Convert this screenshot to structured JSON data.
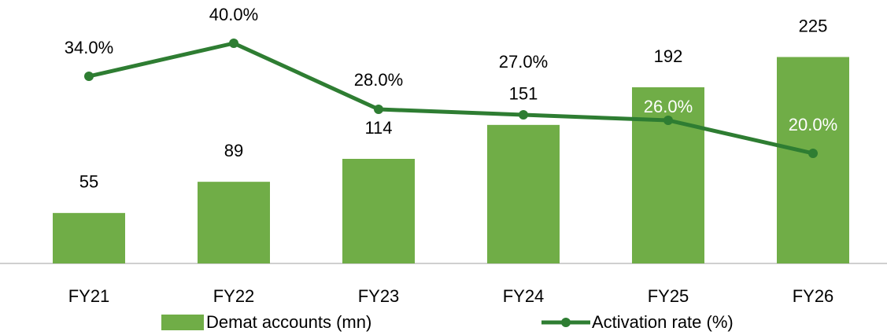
{
  "chart_data": {
    "type": "combo",
    "categories": [
      "FY21",
      "FY22",
      "FY23",
      "FY24",
      "FY25",
      "FY26"
    ],
    "series": [
      {
        "name": "Demat accounts (mn)",
        "type": "bar",
        "color": "#70ad47",
        "values": [
          55,
          89,
          114,
          151,
          192,
          225
        ]
      },
      {
        "name": "Activation rate (%)",
        "type": "line",
        "axis": "y2",
        "color": "#2e7d32",
        "values": [
          34,
          40,
          28,
          27,
          26,
          20
        ],
        "value_labels": [
          "34.0%",
          "40.0%",
          "28.0%",
          "27.0%",
          "26.0%",
          "20.0%"
        ]
      }
    ],
    "ylim": [
      0,
      270
    ],
    "y2lim": [
      0,
      45
    ],
    "legend": "bottom"
  }
}
